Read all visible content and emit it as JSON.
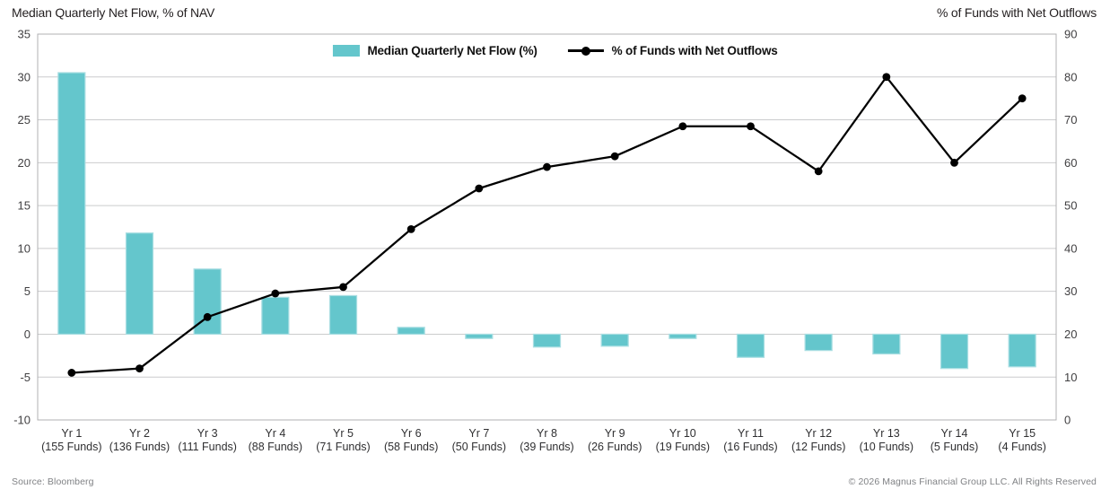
{
  "page": {
    "source": "Source: Bloomberg",
    "copyright": "© 2026 Magnus Financial Group LLC. All Rights Reserved"
  },
  "colors": {
    "bar_fill": "#64C6CC",
    "bar_edge": "#A9DEE2",
    "line": "#000000",
    "grid": "#CBCCCD",
    "plot_border": "#B0B1B3",
    "tick_text": "#414042",
    "title_text": "#231F20",
    "footer_text": "#808285"
  },
  "chart_data": {
    "type": "combo-bar-line",
    "ylabel_left": "Median Quarterly Net Flow, % of NAV",
    "ylabel_right": "% of Funds with Net Outflows",
    "grid": "horizontal",
    "legend_position": "top-center",
    "categories": [
      "Yr 1",
      "Yr 2",
      "Yr 3",
      "Yr 4",
      "Yr 5",
      "Yr 6",
      "Yr 7",
      "Yr 8",
      "Yr 9",
      "Yr 10",
      "Yr 11",
      "Yr 12",
      "Yr 13",
      "Yr 14",
      "Yr 15"
    ],
    "category_sublabels": [
      "(155 Funds)",
      "(136 Funds)",
      "(111 Funds)",
      "(88 Funds)",
      "(71 Funds)",
      "(58 Funds)",
      "(50 Funds)",
      "(39 Funds)",
      "(26 Funds)",
      "(19 Funds)",
      "(16 Funds)",
      "(12 Funds)",
      "(10 Funds)",
      "(5 Funds)",
      "(4 Funds)"
    ],
    "series": [
      {
        "name": "Median Quarterly Net Flow (%)",
        "type": "bar",
        "axis": "left",
        "values": [
          30.5,
          11.8,
          7.6,
          4.3,
          4.5,
          0.8,
          -0.5,
          -1.5,
          -1.4,
          -0.5,
          -2.7,
          -1.9,
          -2.3,
          -4.0,
          -3.8
        ]
      },
      {
        "name": "% of Funds with Net Outflows",
        "type": "line",
        "axis": "right",
        "values": [
          11,
          12,
          24,
          29.5,
          31,
          44.5,
          54,
          59,
          61.5,
          68.5,
          68.5,
          58,
          80,
          60,
          75
        ]
      }
    ],
    "left_axis": {
      "min": -10,
      "max": 35,
      "step": 5,
      "ticks": [
        35,
        30,
        25,
        20,
        15,
        10,
        5,
        0,
        -5,
        -10
      ]
    },
    "right_axis": {
      "min": 0,
      "max": 90,
      "step": 10,
      "ticks": [
        90,
        80,
        70,
        60,
        50,
        40,
        30,
        20,
        10,
        0
      ]
    }
  }
}
